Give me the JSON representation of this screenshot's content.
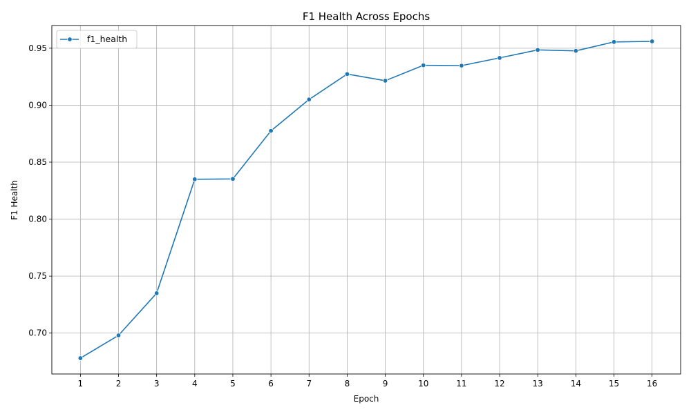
{
  "colors": {
    "series": "#1f77b4",
    "grid": "#b0b0b0",
    "axis": "#000000"
  },
  "chart_data": {
    "type": "line",
    "title": "F1 Health Across Epochs",
    "xlabel": "Epoch",
    "ylabel": "F1 Health",
    "x": [
      1,
      2,
      3,
      4,
      5,
      6,
      7,
      8,
      9,
      10,
      11,
      12,
      13,
      14,
      15,
      16
    ],
    "series": [
      {
        "name": "f1_health",
        "marker": "circle",
        "values": [
          0.678,
          0.698,
          0.735,
          0.835,
          0.8353,
          0.8775,
          0.905,
          0.9273,
          0.9215,
          0.935,
          0.9347,
          0.9415,
          0.9485,
          0.9477,
          0.9555,
          0.956
        ]
      }
    ],
    "xlim": [
      0.25,
      16.75
    ],
    "ylim": [
      0.6641,
      0.9699
    ],
    "xticks": [
      "1",
      "2",
      "3",
      "4",
      "5",
      "6",
      "7",
      "8",
      "9",
      "10",
      "11",
      "12",
      "13",
      "14",
      "15",
      "16"
    ],
    "yticks": [
      "0.70",
      "0.75",
      "0.80",
      "0.85",
      "0.90",
      "0.95"
    ],
    "grid": true,
    "legend": "upper left"
  }
}
